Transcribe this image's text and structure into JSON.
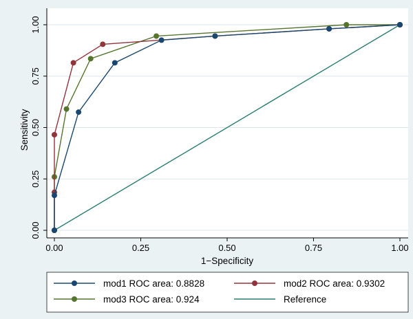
{
  "chart_data": {
    "type": "line",
    "xlabel": "1−Specificity",
    "ylabel": "Sensitivity",
    "xlim": [
      0,
      1
    ],
    "ylim": [
      0,
      1
    ],
    "x_ticks": [
      "0.00",
      "0.25",
      "0.50",
      "0.75",
      "1.00"
    ],
    "y_ticks": [
      "0.00",
      "0.25",
      "0.50",
      "0.75",
      "1.00"
    ],
    "grid": "horizontal",
    "legend_position": "bottom",
    "series": [
      {
        "name": "mod1 ROC area: 0.8828",
        "color": "#1a476f",
        "markers": true,
        "points": [
          [
            0,
            0
          ],
          [
            0,
            0.17
          ],
          [
            0.07,
            0.575
          ],
          [
            0.175,
            0.815
          ],
          [
            0.31,
            0.925
          ],
          [
            0.465,
            0.945
          ],
          [
            0.795,
            0.98
          ],
          [
            1,
            1
          ]
        ]
      },
      {
        "name": "mod2 ROC area: 0.9302",
        "color": "#90353b",
        "markers": true,
        "points": [
          [
            0,
            0
          ],
          [
            0,
            0.185
          ],
          [
            0,
            0.465
          ],
          [
            0.055,
            0.815
          ],
          [
            0.14,
            0.905
          ],
          [
            0.465,
            0.945
          ],
          [
            0.795,
            0.98
          ],
          [
            1,
            1
          ]
        ]
      },
      {
        "name": "mod3 ROC area: 0.924",
        "color": "#55752f",
        "markers": true,
        "points": [
          [
            0,
            0
          ],
          [
            0,
            0.26
          ],
          [
            0.035,
            0.59
          ],
          [
            0.105,
            0.835
          ],
          [
            0.295,
            0.945
          ],
          [
            0.845,
            1
          ],
          [
            1,
            1
          ]
        ]
      },
      {
        "name": "Reference",
        "color": "#2a7d6e",
        "markers": false,
        "points": [
          [
            0,
            0
          ],
          [
            1,
            1
          ]
        ]
      }
    ]
  }
}
